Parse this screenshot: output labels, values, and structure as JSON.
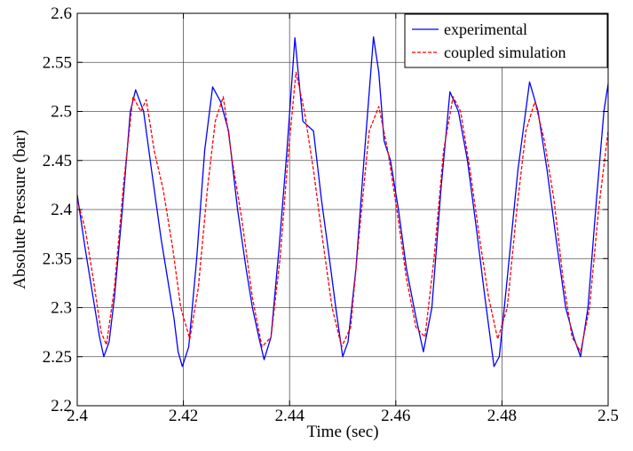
{
  "chart_data": {
    "type": "line",
    "title": "",
    "xlabel": "Time (sec)",
    "ylabel": "Absolute Pressure (bar)",
    "xlim": [
      2.4,
      2.5
    ],
    "ylim": [
      2.2,
      2.6
    ],
    "xticks": [
      2.4,
      2.42,
      2.44,
      2.46,
      2.48,
      2.5
    ],
    "yticks": [
      2.2,
      2.25,
      2.3,
      2.35,
      2.4,
      2.45,
      2.5,
      2.55,
      2.6
    ],
    "xtick_labels": [
      "2.4",
      "2.42",
      "2.44",
      "2.46",
      "2.48",
      "2.5"
    ],
    "ytick_labels": [
      "2.2",
      "2.25",
      "2.3",
      "2.35",
      "2.4",
      "2.45",
      "2.5",
      "2.55",
      "2.6"
    ],
    "grid": true,
    "legend_position": "top-right",
    "series": [
      {
        "name": "experimental",
        "color": "#0000ff",
        "dash": "solid",
        "points": [
          [
            2.4,
            2.415
          ],
          [
            2.4015,
            2.36
          ],
          [
            2.403,
            2.31
          ],
          [
            2.4042,
            2.27
          ],
          [
            2.405,
            2.25
          ],
          [
            2.406,
            2.265
          ],
          [
            2.407,
            2.31
          ],
          [
            2.4085,
            2.4
          ],
          [
            2.41,
            2.5
          ],
          [
            2.411,
            2.522
          ],
          [
            2.4125,
            2.5
          ],
          [
            2.414,
            2.44
          ],
          [
            2.4158,
            2.37
          ],
          [
            2.417,
            2.33
          ],
          [
            2.4182,
            2.29
          ],
          [
            2.419,
            2.255
          ],
          [
            2.4198,
            2.24
          ],
          [
            2.421,
            2.26
          ],
          [
            2.4225,
            2.35
          ],
          [
            2.424,
            2.46
          ],
          [
            2.4255,
            2.525
          ],
          [
            2.427,
            2.51
          ],
          [
            2.4285,
            2.48
          ],
          [
            2.4302,
            2.4
          ],
          [
            2.4318,
            2.34
          ],
          [
            2.433,
            2.3
          ],
          [
            2.4342,
            2.27
          ],
          [
            2.4352,
            2.247
          ],
          [
            2.4365,
            2.27
          ],
          [
            2.438,
            2.36
          ],
          [
            2.4395,
            2.46
          ],
          [
            2.441,
            2.575
          ],
          [
            2.4425,
            2.49
          ],
          [
            2.4445,
            2.48
          ],
          [
            2.446,
            2.41
          ],
          [
            2.4475,
            2.35
          ],
          [
            2.4487,
            2.3
          ],
          [
            2.45,
            2.25
          ],
          [
            2.451,
            2.265
          ],
          [
            2.4525,
            2.34
          ],
          [
            2.454,
            2.45
          ],
          [
            2.4558,
            2.576
          ],
          [
            2.4568,
            2.54
          ],
          [
            2.4578,
            2.47
          ],
          [
            2.459,
            2.45
          ],
          [
            2.4605,
            2.4
          ],
          [
            2.462,
            2.34
          ],
          [
            2.4638,
            2.29
          ],
          [
            2.4652,
            2.255
          ],
          [
            2.4668,
            2.3
          ],
          [
            2.4685,
            2.42
          ],
          [
            2.4702,
            2.52
          ],
          [
            2.4718,
            2.5
          ],
          [
            2.4735,
            2.45
          ],
          [
            2.4752,
            2.38
          ],
          [
            2.4768,
            2.31
          ],
          [
            2.4785,
            2.24
          ],
          [
            2.4795,
            2.25
          ],
          [
            2.481,
            2.33
          ],
          [
            2.483,
            2.44
          ],
          [
            2.4852,
            2.53
          ],
          [
            2.4868,
            2.5
          ],
          [
            2.4885,
            2.44
          ],
          [
            2.4902,
            2.37
          ],
          [
            2.492,
            2.3
          ],
          [
            2.4935,
            2.27
          ],
          [
            2.4948,
            2.25
          ],
          [
            2.4962,
            2.3
          ],
          [
            2.4978,
            2.41
          ],
          [
            2.4992,
            2.5
          ],
          [
            2.5,
            2.528
          ]
        ]
      },
      {
        "name": "coupled simulation",
        "color": "#ff0000",
        "dash": "dashed",
        "points": [
          [
            2.4,
            2.41
          ],
          [
            2.4015,
            2.38
          ],
          [
            2.403,
            2.33
          ],
          [
            2.4045,
            2.275
          ],
          [
            2.4055,
            2.262
          ],
          [
            2.407,
            2.32
          ],
          [
            2.4088,
            2.43
          ],
          [
            2.4105,
            2.515
          ],
          [
            2.412,
            2.5
          ],
          [
            2.413,
            2.512
          ],
          [
            2.4145,
            2.46
          ],
          [
            2.4162,
            2.42
          ],
          [
            2.418,
            2.36
          ],
          [
            2.4195,
            2.3
          ],
          [
            2.4212,
            2.268
          ],
          [
            2.4228,
            2.32
          ],
          [
            2.4245,
            2.42
          ],
          [
            2.426,
            2.49
          ],
          [
            2.4275,
            2.515
          ],
          [
            2.4292,
            2.45
          ],
          [
            2.431,
            2.39
          ],
          [
            2.433,
            2.31
          ],
          [
            2.4348,
            2.26
          ],
          [
            2.4365,
            2.27
          ],
          [
            2.4382,
            2.35
          ],
          [
            2.4398,
            2.46
          ],
          [
            2.4412,
            2.54
          ],
          [
            2.4428,
            2.5
          ],
          [
            2.4445,
            2.44
          ],
          [
            2.4462,
            2.37
          ],
          [
            2.448,
            2.3
          ],
          [
            2.4498,
            2.26
          ],
          [
            2.4515,
            2.28
          ],
          [
            2.4532,
            2.38
          ],
          [
            2.455,
            2.48
          ],
          [
            2.4568,
            2.505
          ],
          [
            2.4585,
            2.46
          ],
          [
            2.4602,
            2.4
          ],
          [
            2.462,
            2.33
          ],
          [
            2.4638,
            2.28
          ],
          [
            2.4655,
            2.27
          ],
          [
            2.4672,
            2.35
          ],
          [
            2.469,
            2.46
          ],
          [
            2.4708,
            2.515
          ],
          [
            2.4722,
            2.5
          ],
          [
            2.474,
            2.44
          ],
          [
            2.4758,
            2.37
          ],
          [
            2.4775,
            2.31
          ],
          [
            2.4792,
            2.268
          ],
          [
            2.481,
            2.3
          ],
          [
            2.4828,
            2.4
          ],
          [
            2.4845,
            2.48
          ],
          [
            2.4862,
            2.51
          ],
          [
            2.488,
            2.47
          ],
          [
            2.4898,
            2.41
          ],
          [
            2.4915,
            2.33
          ],
          [
            2.4932,
            2.27
          ],
          [
            2.4948,
            2.255
          ],
          [
            2.4965,
            2.3
          ],
          [
            2.4982,
            2.4
          ],
          [
            2.5,
            2.48
          ]
        ]
      }
    ]
  }
}
